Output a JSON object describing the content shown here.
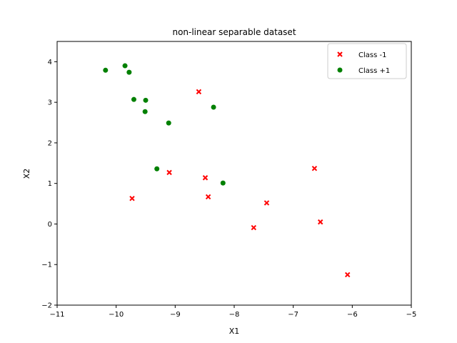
{
  "chart_data": {
    "type": "scatter",
    "title": "non-linear separable dataset",
    "xlabel": "X1",
    "ylabel": "X2",
    "xlim": [
      -11,
      -5
    ],
    "ylim": [
      -2,
      4.5
    ],
    "xticks": [
      -11,
      -10,
      -9,
      -8,
      -7,
      -6,
      -5
    ],
    "yticks": [
      -2,
      -1,
      0,
      1,
      2,
      3,
      4
    ],
    "xtick_labels": [
      "−11",
      "−10",
      "−9",
      "−8",
      "−7",
      "−6",
      "−5"
    ],
    "ytick_labels": [
      "−2",
      "−1",
      "0",
      "1",
      "2",
      "3",
      "4"
    ],
    "grid": false,
    "legend_position": "top-right",
    "series": [
      {
        "name": "Class -1",
        "marker": "x",
        "color": "#ff0000",
        "points": [
          [
            -8.6,
            3.26
          ],
          [
            -9.1,
            1.27
          ],
          [
            -9.73,
            0.63
          ],
          [
            -8.49,
            1.14
          ],
          [
            -8.44,
            0.67
          ],
          [
            -7.45,
            0.52
          ],
          [
            -7.67,
            -0.09
          ],
          [
            -6.64,
            1.37
          ],
          [
            -6.54,
            0.05
          ],
          [
            -6.08,
            -1.25
          ]
        ]
      },
      {
        "name": "Class +1",
        "marker": "o",
        "color": "#008000",
        "points": [
          [
            -10.18,
            3.79
          ],
          [
            -9.85,
            3.9
          ],
          [
            -9.78,
            3.74
          ],
          [
            -9.7,
            3.07
          ],
          [
            -9.5,
            3.05
          ],
          [
            -9.51,
            2.77
          ],
          [
            -8.35,
            2.88
          ],
          [
            -9.11,
            2.49
          ],
          [
            -9.31,
            1.36
          ],
          [
            -8.19,
            1.01
          ]
        ]
      }
    ]
  }
}
